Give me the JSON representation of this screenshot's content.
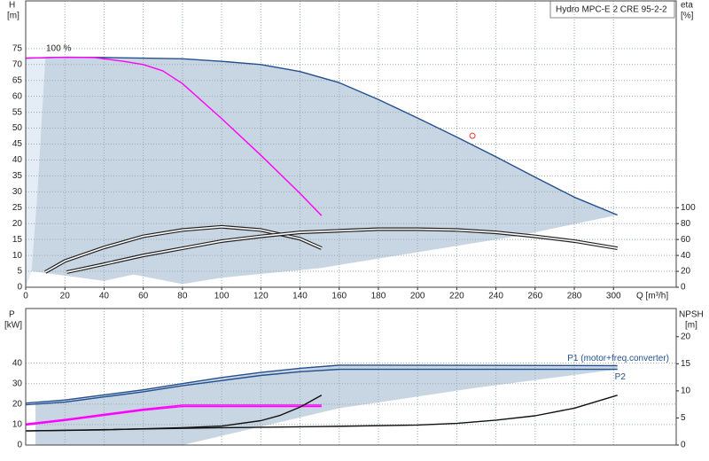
{
  "chart_data": [
    {
      "type": "line",
      "title": "Hydro MPC-E 2 CRE 95-2-2",
      "x_label": "Q [m³/h]",
      "y_label": [
        "H",
        "[m]"
      ],
      "y2_label": [
        "eta",
        "[%]"
      ],
      "annotation": "100 %",
      "xlim": [
        0,
        332
      ],
      "xticks": [
        0,
        20,
        40,
        60,
        80,
        100,
        120,
        140,
        160,
        180,
        200,
        220,
        240,
        260,
        280,
        300
      ],
      "ylim": [
        0,
        90
      ],
      "yticks": [
        0,
        5,
        10,
        15,
        20,
        25,
        30,
        35,
        40,
        45,
        50,
        55,
        60,
        65,
        70,
        75
      ],
      "y2lim": [
        0,
        360
      ],
      "y2ticks": [
        0,
        20,
        40,
        60,
        80,
        100
      ],
      "grid": true,
      "areas": [
        {
          "color": "#e4edf5",
          "x": [
            0,
            0,
            10,
            6,
            3
          ],
          "values": [
            0,
            72,
            72,
            30,
            5
          ]
        },
        {
          "color": "#c8d5e2",
          "x": [
            10,
            20,
            40,
            60,
            80,
            100,
            120,
            140,
            160,
            180,
            200,
            220,
            240,
            260,
            280,
            302,
            250,
            200,
            150,
            100,
            80,
            55,
            40,
            10,
            3,
            6
          ],
          "values": [
            72,
            72.3,
            72.2,
            72,
            71.8,
            71,
            70,
            67.8,
            64.3,
            59,
            53.2,
            47.2,
            41,
            34.6,
            28.3,
            22.7,
            16,
            11,
            6,
            3,
            1,
            4,
            2,
            4.5,
            5,
            30
          ]
        }
      ],
      "series": [
        {
          "color": "#24508f",
          "x": [
            0,
            20,
            40,
            60,
            80,
            100,
            120,
            140,
            160,
            180,
            200,
            220,
            240,
            260,
            280,
            302
          ],
          "values": [
            72,
            72.3,
            72.2,
            72,
            71.8,
            71,
            70,
            67.8,
            64.3,
            59,
            53.2,
            47.2,
            41,
            34.6,
            28.3,
            22.7
          ]
        },
        {
          "color": "#ff00ff",
          "x": [
            0,
            20,
            35,
            50,
            60,
            70,
            80,
            100,
            120,
            140,
            151
          ],
          "values": [
            72,
            72.3,
            72.2,
            71,
            70,
            68,
            64,
            53,
            41.5,
            29.5,
            22.5
          ]
        },
        {
          "color": "#222222",
          "axis": "y2",
          "line_style": "double",
          "x": [
            10,
            20,
            40,
            60,
            80,
            100,
            120,
            140,
            151
          ],
          "values": [
            19,
            33,
            50,
            64,
            72,
            76,
            72,
            61,
            49
          ]
        },
        {
          "color": "#222222",
          "axis": "y2",
          "line_style": "double",
          "x": [
            21,
            40,
            60,
            80,
            100,
            120,
            140,
            160,
            180,
            200,
            220,
            240,
            260,
            280,
            302
          ],
          "values": [
            19,
            29,
            40,
            49,
            58,
            64,
            69,
            71,
            73,
            73,
            72,
            69,
            64,
            58,
            49
          ]
        }
      ],
      "duty_point": {
        "x": 228,
        "value": 47.6,
        "color": "#e03c31"
      }
    },
    {
      "type": "line",
      "y_label": [
        "P",
        "[kW]"
      ],
      "y2_label": [
        "NPSH",
        "[m]"
      ],
      "ylim": [
        0,
        66.7
      ],
      "yticks": [
        0,
        10,
        20,
        30,
        40
      ],
      "y2lim": [
        0,
        25.2
      ],
      "y2ticks": [
        0,
        5,
        10,
        15,
        20
      ],
      "grid": true,
      "areas": [
        {
          "color": "#c8d5e2",
          "x": [
            5,
            20,
            40,
            60,
            80,
            100,
            120,
            140,
            160,
            302,
            302,
            230,
            160,
            80,
            20,
            5
          ],
          "values": [
            20.5,
            22,
            24.5,
            27,
            30,
            33,
            35.5,
            37.5,
            39,
            39,
            37,
            28,
            18,
            0,
            0,
            0
          ]
        }
      ],
      "series": [
        {
          "name": "P1 (motor+freq.converter)",
          "color": "#24508f",
          "x": [
            0,
            20,
            40,
            60,
            80,
            100,
            120,
            140,
            160,
            180,
            302
          ],
          "values": [
            20.5,
            22,
            24.5,
            27,
            30,
            33,
            35.5,
            37.5,
            39,
            39,
            38.8
          ]
        },
        {
          "name": "P2",
          "color": "#24508f",
          "x": [
            0,
            20,
            40,
            60,
            80,
            100,
            120,
            140,
            160,
            280,
            302
          ],
          "values": [
            19.7,
            21,
            23.5,
            26,
            29,
            31.5,
            34,
            35.8,
            37,
            37,
            37
          ]
        },
        {
          "color": "#ff00ff",
          "x": [
            0,
            20,
            40,
            60,
            80,
            100,
            151
          ],
          "values": [
            10.3,
            12.5,
            15,
            17.5,
            19.5,
            19.5,
            19.5
          ]
        },
        {
          "color": "#ff00ff",
          "x": [
            0,
            20,
            40,
            60,
            80,
            100,
            151
          ],
          "values": [
            9.8,
            12,
            14.5,
            17,
            18.8,
            18.8,
            18.8
          ]
        },
        {
          "color": "#111111",
          "axis": "y2",
          "x": [
            0,
            40,
            80,
            100,
            120,
            130,
            140,
            151
          ],
          "values": [
            2.6,
            2.8,
            3.2,
            3.5,
            4.5,
            5.5,
            7,
            9.2
          ]
        },
        {
          "color": "#111111",
          "axis": "y2",
          "x": [
            0,
            100,
            150,
            200,
            220,
            240,
            260,
            280,
            302
          ],
          "values": [
            2.6,
            3.2,
            3.4,
            3.7,
            4,
            4.6,
            5.4,
            6.8,
            9.2
          ]
        }
      ]
    }
  ]
}
